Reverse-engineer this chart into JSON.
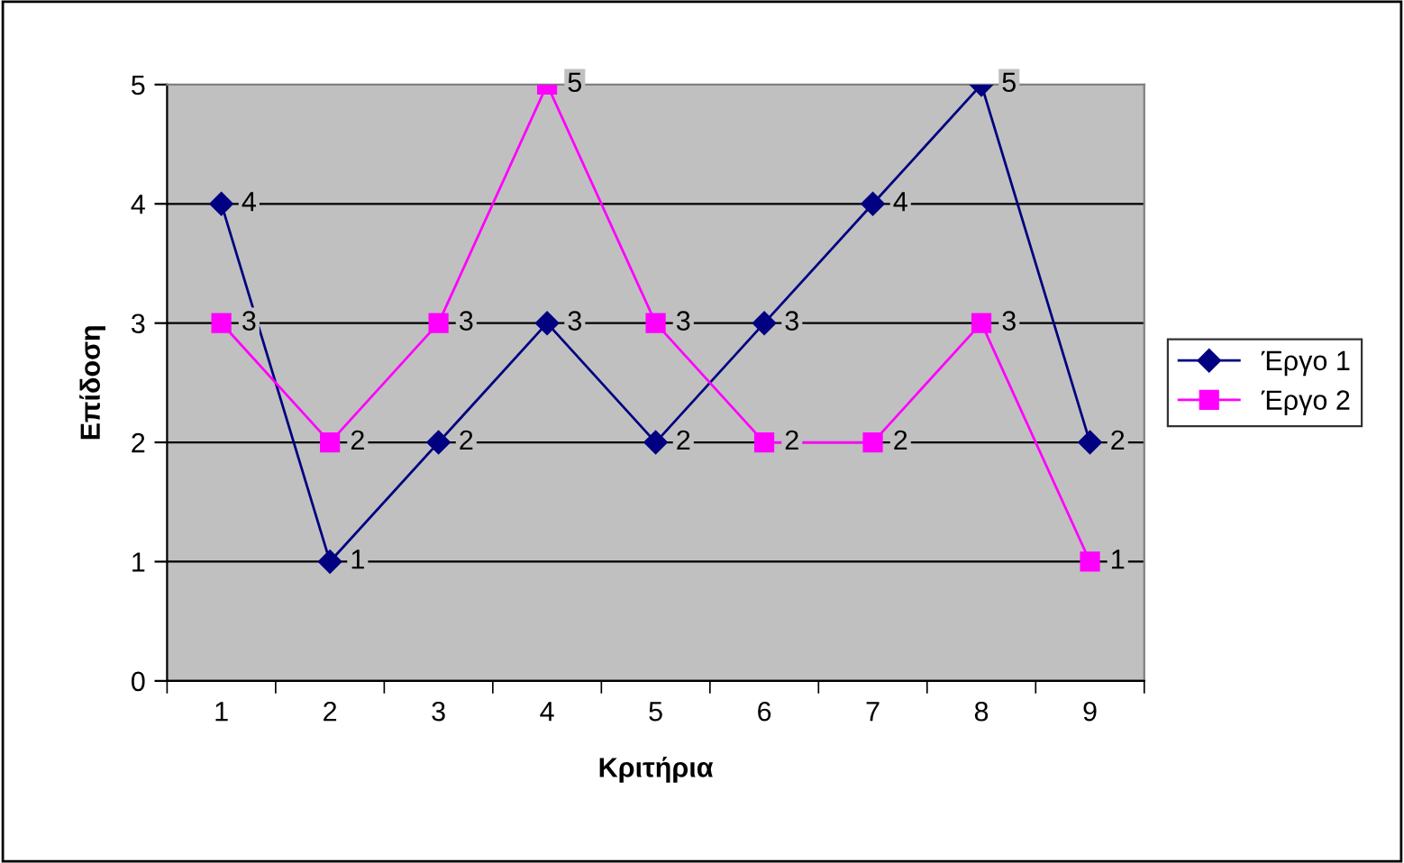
{
  "chart_data": {
    "type": "line",
    "xlabel": "Κριτήρια",
    "ylabel": "Επίδοση",
    "categories": [
      "1",
      "2",
      "3",
      "4",
      "5",
      "6",
      "7",
      "8",
      "9"
    ],
    "series": [
      {
        "name": "Έργο 1",
        "color": "#000080",
        "marker": "diamond",
        "values": [
          4,
          1,
          2,
          3,
          2,
          3,
          4,
          5,
          2
        ]
      },
      {
        "name": "Έργο 2",
        "color": "#ff00ff",
        "marker": "square",
        "values": [
          3,
          2,
          3,
          5,
          3,
          2,
          2,
          3,
          1
        ]
      }
    ],
    "ylim": [
      0,
      5
    ],
    "yticks": [
      0,
      1,
      2,
      3,
      4,
      5
    ],
    "grid": "y",
    "legend": "right",
    "data_labels": true,
    "line_style": "solid"
  }
}
